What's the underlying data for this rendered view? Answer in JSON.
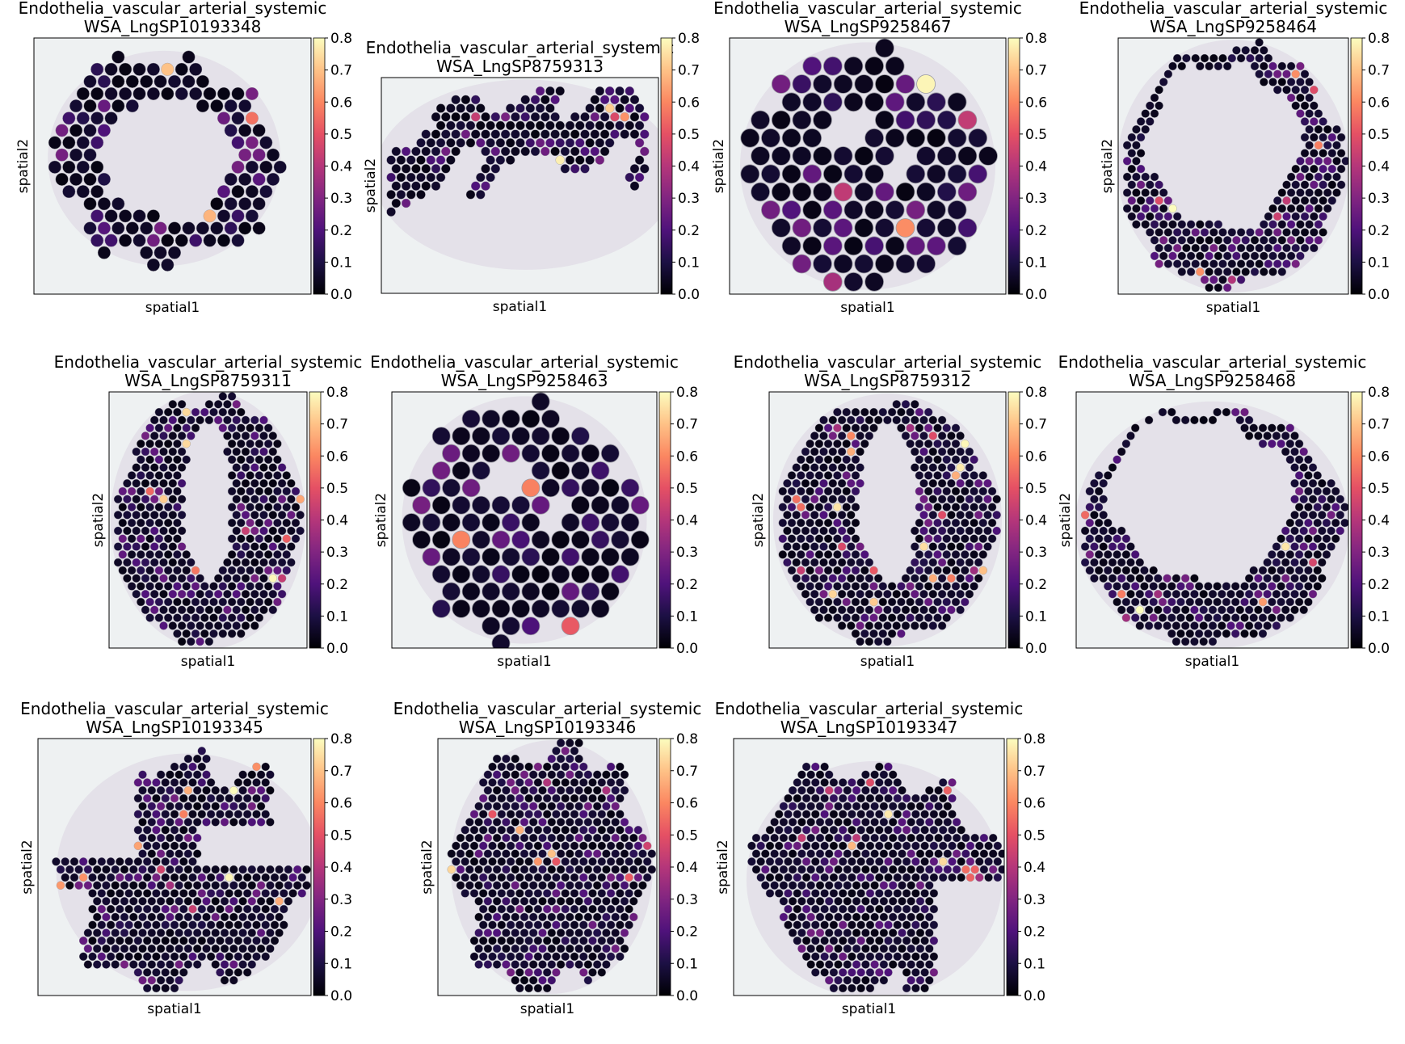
{
  "figure": {
    "colormap": "magma",
    "background_color": "#ffffff",
    "tissue_color": "#c9b3cf",
    "tissue_edge_color": "#e6a9c0",
    "slide_color": "#eef1f2"
  },
  "chart_data": [
    {
      "type": "scatter",
      "title": "Endothelia_vascular_arterial_systemic",
      "sample": "WSA_LngSP10193348",
      "xlabel": "spatial1",
      "ylabel": "spatial2",
      "colorbar": {
        "vmin": 0.0,
        "vmax": 0.8,
        "ticks": [
          "0.0",
          "0.1",
          "0.2",
          "0.3",
          "0.4",
          "0.5",
          "0.6",
          "0.7",
          "0.8"
        ]
      },
      "max_value": 0.8,
      "hotspot_count": 18
    },
    {
      "type": "scatter",
      "title": "Endothelia_vascular_arterial_systemic",
      "sample": "WSA_LngSP8759313",
      "xlabel": "spatial1",
      "ylabel": "spatial2",
      "colorbar": {
        "vmin": 0.0,
        "vmax": 0.8,
        "ticks": [
          "0.0",
          "0.1",
          "0.2",
          "0.3",
          "0.4",
          "0.5",
          "0.6",
          "0.7",
          "0.8"
        ]
      },
      "max_value": 0.8,
      "hotspot_count": 40
    },
    {
      "type": "scatter",
      "title": "Endothelia_vascular_arterial_systemic",
      "sample": "WSA_LngSP9258467",
      "xlabel": "spatial1",
      "ylabel": "spatial2",
      "colorbar": {
        "vmin": 0.0,
        "vmax": 0.8,
        "ticks": [
          "0.0",
          "0.1",
          "0.2",
          "0.3",
          "0.4",
          "0.5",
          "0.6",
          "0.7",
          "0.8"
        ]
      },
      "max_value": 0.8,
      "hotspot_count": 8
    },
    {
      "type": "scatter",
      "title": "Endothelia_vascular_arterial_systemic",
      "sample": "WSA_LngSP9258464",
      "xlabel": "spatial1",
      "ylabel": "spatial2",
      "colorbar": {
        "vmin": 0.0,
        "vmax": 0.8,
        "ticks": [
          "0.0",
          "0.1",
          "0.2",
          "0.3",
          "0.4",
          "0.5",
          "0.6",
          "0.7",
          "0.8"
        ]
      },
      "max_value": 0.8,
      "hotspot_count": 10
    },
    {
      "type": "scatter",
      "title": "Endothelia_vascular_arterial_systemic",
      "sample": "WSA_LngSP8759311",
      "xlabel": "spatial1",
      "ylabel": "spatial2",
      "colorbar": {
        "vmin": 0.0,
        "vmax": 0.8,
        "ticks": [
          "0.0",
          "0.1",
          "0.2",
          "0.3",
          "0.4",
          "0.5",
          "0.6",
          "0.7",
          "0.8"
        ]
      },
      "max_value": 0.8,
      "hotspot_count": 45
    },
    {
      "type": "scatter",
      "title": "Endothelia_vascular_arterial_systemic",
      "sample": "WSA_LngSP9258463",
      "xlabel": "spatial1",
      "ylabel": "spatial2",
      "colorbar": {
        "vmin": 0.0,
        "vmax": 0.8,
        "ticks": [
          "0.0",
          "0.1",
          "0.2",
          "0.3",
          "0.4",
          "0.5",
          "0.6",
          "0.7",
          "0.8"
        ]
      },
      "max_value": 0.8,
      "hotspot_count": 10
    },
    {
      "type": "scatter",
      "title": "Endothelia_vascular_arterial_systemic",
      "sample": "WSA_LngSP8759312",
      "xlabel": "spatial1",
      "ylabel": "spatial2",
      "colorbar": {
        "vmin": 0.0,
        "vmax": 0.8,
        "ticks": [
          "0.0",
          "0.1",
          "0.2",
          "0.3",
          "0.4",
          "0.5",
          "0.6",
          "0.7",
          "0.8"
        ]
      },
      "max_value": 0.8,
      "hotspot_count": 60
    },
    {
      "type": "scatter",
      "title": "Endothelia_vascular_arterial_systemic",
      "sample": "WSA_LngSP9258468",
      "xlabel": "spatial1",
      "ylabel": "spatial2",
      "colorbar": {
        "vmin": 0.0,
        "vmax": 0.8,
        "ticks": [
          "0.0",
          "0.1",
          "0.2",
          "0.3",
          "0.4",
          "0.5",
          "0.6",
          "0.7",
          "0.8"
        ]
      },
      "max_value": 0.8,
      "hotspot_count": 8
    },
    {
      "type": "scatter",
      "title": "Endothelia_vascular_arterial_systemic",
      "sample": "WSA_LngSP10193345",
      "xlabel": "spatial1",
      "ylabel": "spatial2",
      "colorbar": {
        "vmin": 0.0,
        "vmax": 0.8,
        "ticks": [
          "0.0",
          "0.1",
          "0.2",
          "0.3",
          "0.4",
          "0.5",
          "0.6",
          "0.7",
          "0.8"
        ]
      },
      "max_value": 0.8,
      "hotspot_count": 12
    },
    {
      "type": "scatter",
      "title": "Endothelia_vascular_arterial_systemic",
      "sample": "WSA_LngSP10193346",
      "xlabel": "spatial1",
      "ylabel": "spatial2",
      "colorbar": {
        "vmin": 0.0,
        "vmax": 0.8,
        "ticks": [
          "0.0",
          "0.1",
          "0.2",
          "0.3",
          "0.4",
          "0.5",
          "0.6",
          "0.7",
          "0.8"
        ]
      },
      "max_value": 0.8,
      "hotspot_count": 10
    },
    {
      "type": "scatter",
      "title": "Endothelia_vascular_arterial_systemic",
      "sample": "WSA_LngSP10193347",
      "xlabel": "spatial1",
      "ylabel": "spatial2",
      "colorbar": {
        "vmin": 0.0,
        "vmax": 0.8,
        "ticks": [
          "0.0",
          "0.1",
          "0.2",
          "0.3",
          "0.4",
          "0.5",
          "0.6",
          "0.7",
          "0.8"
        ]
      },
      "max_value": 0.8,
      "hotspot_count": 12
    }
  ]
}
